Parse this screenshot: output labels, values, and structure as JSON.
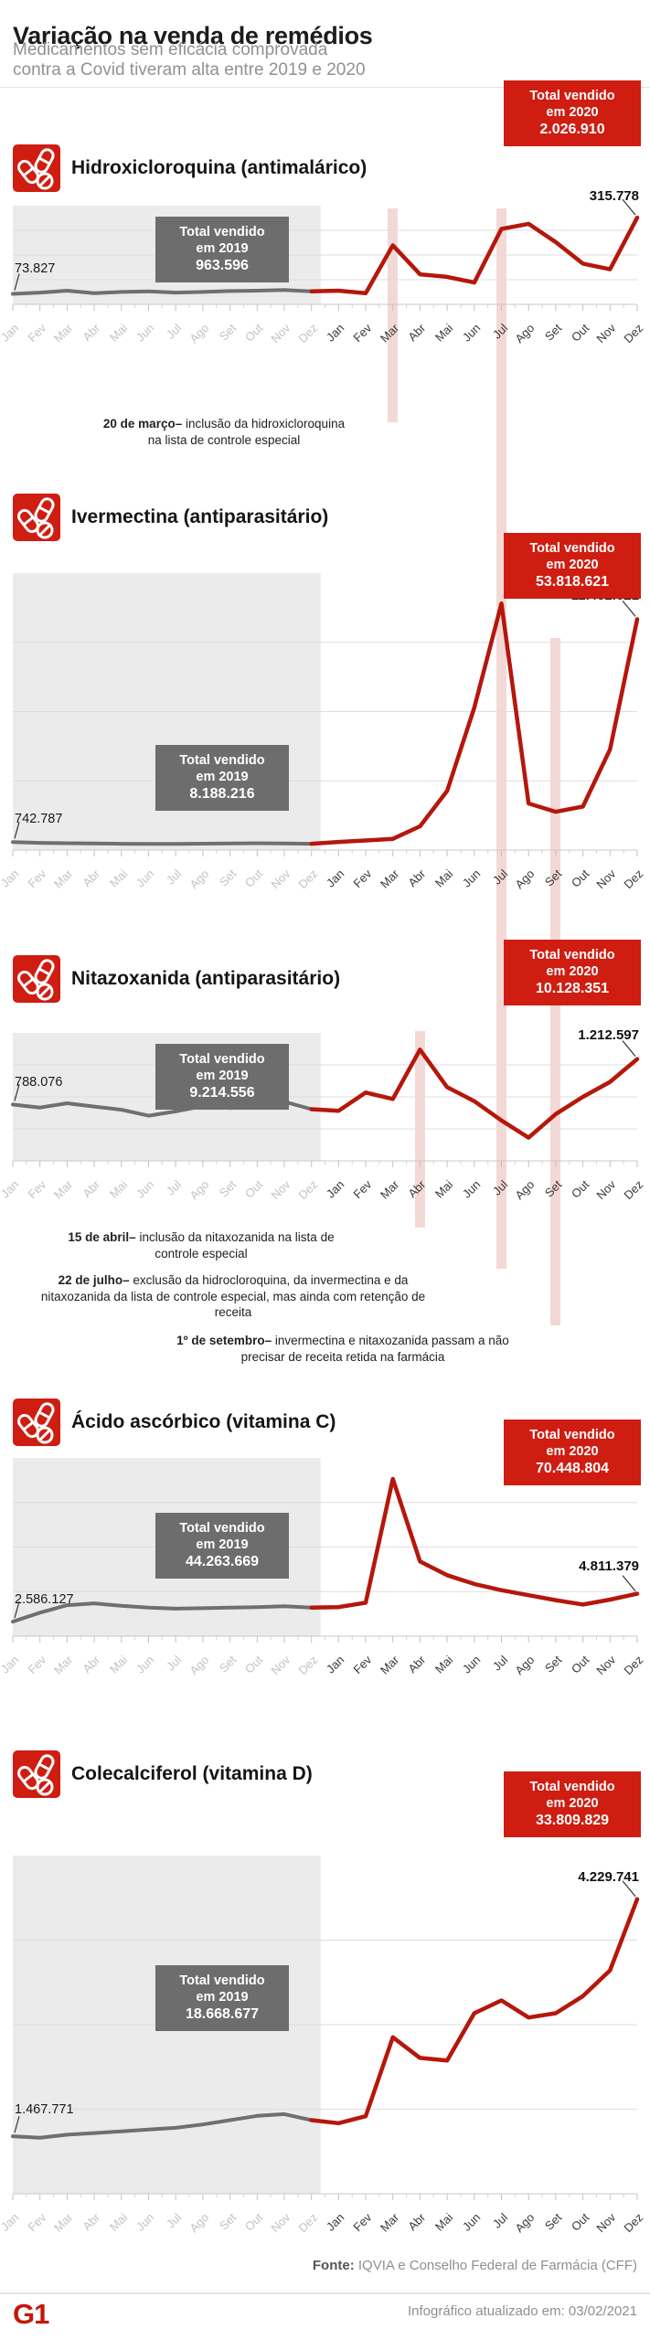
{
  "header": {
    "title": "Variação na venda de remédios",
    "subtitle": "Medicamentos sem eficácia comprovada contra a Covid tiveram alta entre 2019 e 2020"
  },
  "months": [
    "Jan",
    "Fev",
    "Mar",
    "Abr",
    "Mai",
    "Jun",
    "Jul",
    "Ago",
    "Set",
    "Out",
    "Nov",
    "Dez"
  ],
  "chart_data": [
    {
      "type": "line",
      "title": "Hidroxicloroquina (antimalárico)",
      "total_2020": {
        "label_line1": "Total vendido",
        "label_line2": "em 2020",
        "value": "2.026.910"
      },
      "total_2019": {
        "label_line1": "Total vendido",
        "label_line2": "em 2019",
        "value": "963.596"
      },
      "first_point_label": "73.827",
      "last_point_label": "315.778",
      "events": [
        "Mar 2020",
        "Jul 2020"
      ],
      "series": [
        {
          "name": "2019",
          "values": [
            73827,
            78000,
            84000,
            76000,
            80000,
            82000,
            78000,
            80000,
            83000,
            84000,
            86000,
            82000
          ]
        },
        {
          "name": "2020",
          "values": [
            84000,
            76000,
            228000,
            136000,
            128000,
            110000,
            280000,
            296000,
            238000,
            170000,
            152000,
            315778
          ]
        }
      ],
      "annotations": [
        {
          "bold": "20 de março–",
          "text": " inclusão da hidroxicloroquina na lista de controle especial"
        }
      ]
    },
    {
      "type": "line",
      "title": "Ivermectina (antiparasitário)",
      "total_2020": {
        "label_line1": "Total vendido",
        "label_line2": "em 2020",
        "value": "53.818.621"
      },
      "total_2019": {
        "label_line1": "Total vendido",
        "label_line2": "em 2019",
        "value": "8.188.216"
      },
      "first_point_label": "742.787",
      "last_point_label": "11.452.021",
      "events": [
        "Jul 2020",
        "Set 2020"
      ],
      "series": [
        {
          "name": "2019",
          "values": [
            742787,
            705000,
            690000,
            675000,
            665000,
            655000,
            660000,
            668000,
            676000,
            690000,
            680000,
            662000
          ]
        },
        {
          "name": "2020",
          "values": [
            750000,
            820000,
            900000,
            1500000,
            3200000,
            7200000,
            12200000,
            2600000,
            2200000,
            2450000,
            5200000,
            11452021
          ]
        }
      ],
      "annotations": []
    },
    {
      "type": "line",
      "title": "Nitazoxanida (antiparasitário)",
      "total_2020": {
        "label_line1": "Total vendido",
        "label_line2": "em 2020",
        "value": "10.128.351"
      },
      "total_2019": {
        "label_line1": "Total vendido",
        "label_line2": "em 2019",
        "value": "9.214.556"
      },
      "first_point_label": "788.076",
      "last_point_label": "1.212.597",
      "events": [
        "Abr 2020",
        "Jul 2020",
        "Set 2020"
      ],
      "series": [
        {
          "name": "2019",
          "values": [
            788076,
            760000,
            800000,
            770000,
            740000,
            685000,
            725000,
            775000,
            755000,
            790000,
            815000,
            745000
          ]
        },
        {
          "name": "2020",
          "values": [
            730000,
            900000,
            840000,
            1300000,
            950000,
            820000,
            640000,
            480000,
            700000,
            860000,
            1000000,
            1212597
          ]
        }
      ],
      "annotations": [
        {
          "bold": "15 de abril–",
          "text": " inclusão da nitaxozanida na lista de controle especial"
        },
        {
          "bold": "22 de julho–",
          "text": " exclusão da hidrocloroquina, da invermectina e da nitaxozanida da lista de controle especial, mas ainda com retenção de receita"
        },
        {
          "bold": "1º de setembro–",
          "text": " invermectina e nitaxozanida passam a não precisar de receita retida na farmácia"
        }
      ]
    },
    {
      "type": "line",
      "title": "Ácido ascórbico (vitamina C)",
      "total_2020": {
        "label_line1": "Total vendido",
        "label_line2": "em 2020",
        "value": "70.448.804"
      },
      "total_2019": {
        "label_line1": "Total vendido",
        "label_line2": "em 2019",
        "value": "44.263.669"
      },
      "first_point_label": "2.586.127",
      "last_point_label": "4.811.379",
      "events": [],
      "series": [
        {
          "name": "2019",
          "values": [
            2586127,
            3300000,
            3900000,
            4050000,
            3850000,
            3700000,
            3620000,
            3660000,
            3700000,
            3740000,
            3820000,
            3700000
          ]
        },
        {
          "name": "2020",
          "values": [
            3750000,
            4100000,
            14000000,
            7400000,
            6300000,
            5600000,
            5100000,
            4700000,
            4300000,
            3950000,
            4350000,
            4811379
          ]
        }
      ],
      "annotations": []
    },
    {
      "type": "line",
      "title": "Colecalciferol (vitamina D)",
      "total_2020": {
        "label_line1": "Total vendido",
        "label_line2": "em 2020",
        "value": "33.809.829"
      },
      "total_2019": {
        "label_line1": "Total vendido",
        "label_line2": "em 2019",
        "value": "18.668.677"
      },
      "first_point_label": "1.467.771",
      "last_point_label": "4.229.741",
      "events": [],
      "series": [
        {
          "name": "2019",
          "values": [
            1467771,
            1450000,
            1485000,
            1505000,
            1525000,
            1545000,
            1565000,
            1605000,
            1655000,
            1705000,
            1725000,
            1655000
          ]
        },
        {
          "name": "2020",
          "values": [
            1620000,
            1700000,
            2620000,
            2380000,
            2350000,
            2900000,
            3050000,
            2850000,
            2900000,
            3100000,
            3400000,
            4229741
          ]
        }
      ],
      "annotations": []
    }
  ],
  "colors": {
    "accent_red": "#cf1d11",
    "line_red": "#b5170b",
    "line_gray": "#6f6f6f",
    "box_gray": "#6d6d6d",
    "band_pink": "rgba(202,80,68,0.22)"
  },
  "footer": {
    "source_label": "Fonte:",
    "source_text": " IQVIA e Conselho Federal de Farmácia (CFF)",
    "updated": "Infográfico atualizado em: 03/02/2021",
    "logo": "G1"
  }
}
